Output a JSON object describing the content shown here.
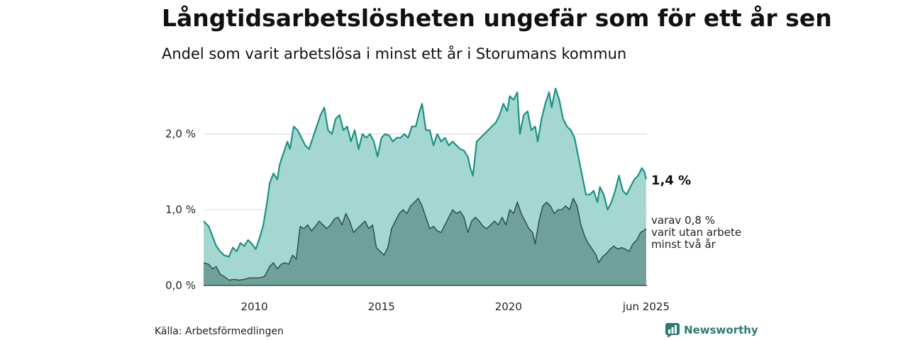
{
  "header": {
    "title": "Långtidsarbetslösheten ungefär som för ett år sen",
    "subtitle": "Andel som varit arbetslösa i minst ett år i Storumans kommun"
  },
  "footer": {
    "source": "Källa: Arbetsförmedlingen",
    "brand": "Newsworthy"
  },
  "colors": {
    "main_line": "#1a9384",
    "main_fill": "#a5d7d1",
    "sub_line": "#2a4a44",
    "sub_fill": "#6fa19a",
    "grid": "#dddddd"
  },
  "chart_data": {
    "type": "area",
    "x_unit": "year",
    "xlim": [
      2008.0,
      2025.45
    ],
    "ylim": [
      0,
      2.6
    ],
    "grid": true,
    "y_ticks": [
      {
        "value": 0.0,
        "label": "0,0 %"
      },
      {
        "value": 1.0,
        "label": "1,0 %"
      },
      {
        "value": 2.0,
        "label": "2,0 %"
      }
    ],
    "x_ticks": [
      {
        "value": 2010,
        "label": "2010"
      },
      {
        "value": 2015,
        "label": "2015"
      },
      {
        "value": 2020,
        "label": "2020"
      },
      {
        "value": 2025.42,
        "label": "jun 2025"
      }
    ],
    "series": [
      {
        "label_lines": [
          "1,4 %"
        ],
        "points": [
          [
            2008.0,
            0.85
          ],
          [
            2008.2,
            0.78
          ],
          [
            2008.35,
            0.65
          ],
          [
            2008.5,
            0.52
          ],
          [
            2008.65,
            0.45
          ],
          [
            2008.8,
            0.4
          ],
          [
            2009.0,
            0.38
          ],
          [
            2009.15,
            0.5
          ],
          [
            2009.3,
            0.45
          ],
          [
            2009.45,
            0.56
          ],
          [
            2009.6,
            0.52
          ],
          [
            2009.75,
            0.6
          ],
          [
            2009.9,
            0.55
          ],
          [
            2010.05,
            0.48
          ],
          [
            2010.2,
            0.62
          ],
          [
            2010.35,
            0.8
          ],
          [
            2010.5,
            1.1
          ],
          [
            2010.6,
            1.35
          ],
          [
            2010.75,
            1.48
          ],
          [
            2010.9,
            1.4
          ],
          [
            2011.0,
            1.6
          ],
          [
            2011.15,
            1.75
          ],
          [
            2011.3,
            1.9
          ],
          [
            2011.4,
            1.8
          ],
          [
            2011.55,
            2.1
          ],
          [
            2011.7,
            2.05
          ],
          [
            2011.85,
            1.95
          ],
          [
            2012.0,
            1.85
          ],
          [
            2012.15,
            1.8
          ],
          [
            2012.3,
            1.95
          ],
          [
            2012.45,
            2.1
          ],
          [
            2012.6,
            2.25
          ],
          [
            2012.75,
            2.35
          ],
          [
            2012.9,
            2.05
          ],
          [
            2013.05,
            2.0
          ],
          [
            2013.2,
            2.2
          ],
          [
            2013.35,
            2.25
          ],
          [
            2013.5,
            2.05
          ],
          [
            2013.65,
            2.1
          ],
          [
            2013.8,
            1.9
          ],
          [
            2013.95,
            2.05
          ],
          [
            2014.1,
            1.8
          ],
          [
            2014.25,
            2.0
          ],
          [
            2014.4,
            1.95
          ],
          [
            2014.55,
            2.0
          ],
          [
            2014.7,
            1.9
          ],
          [
            2014.85,
            1.7
          ],
          [
            2015.0,
            1.95
          ],
          [
            2015.15,
            2.0
          ],
          [
            2015.3,
            1.98
          ],
          [
            2015.45,
            1.9
          ],
          [
            2015.6,
            1.95
          ],
          [
            2015.75,
            1.95
          ],
          [
            2015.9,
            2.0
          ],
          [
            2016.05,
            1.95
          ],
          [
            2016.2,
            2.1
          ],
          [
            2016.35,
            2.1
          ],
          [
            2016.5,
            2.3
          ],
          [
            2016.6,
            2.4
          ],
          [
            2016.75,
            2.05
          ],
          [
            2016.9,
            2.05
          ],
          [
            2017.05,
            1.85
          ],
          [
            2017.2,
            2.0
          ],
          [
            2017.35,
            1.9
          ],
          [
            2017.5,
            1.95
          ],
          [
            2017.65,
            1.85
          ],
          [
            2017.8,
            1.9
          ],
          [
            2017.95,
            1.85
          ],
          [
            2018.1,
            1.8
          ],
          [
            2018.25,
            1.78
          ],
          [
            2018.4,
            1.7
          ],
          [
            2018.5,
            1.55
          ],
          [
            2018.6,
            1.45
          ],
          [
            2018.75,
            1.9
          ],
          [
            2018.9,
            1.95
          ],
          [
            2019.05,
            2.0
          ],
          [
            2019.2,
            2.05
          ],
          [
            2019.35,
            2.1
          ],
          [
            2019.5,
            2.15
          ],
          [
            2019.65,
            2.25
          ],
          [
            2019.8,
            2.4
          ],
          [
            2019.95,
            2.3
          ],
          [
            2020.05,
            2.5
          ],
          [
            2020.2,
            2.45
          ],
          [
            2020.35,
            2.55
          ],
          [
            2020.45,
            2.0
          ],
          [
            2020.6,
            2.25
          ],
          [
            2020.75,
            2.3
          ],
          [
            2020.9,
            2.05
          ],
          [
            2021.05,
            2.1
          ],
          [
            2021.15,
            1.9
          ],
          [
            2021.3,
            2.2
          ],
          [
            2021.45,
            2.4
          ],
          [
            2021.6,
            2.55
          ],
          [
            2021.7,
            2.35
          ],
          [
            2021.85,
            2.6
          ],
          [
            2022.0,
            2.45
          ],
          [
            2022.15,
            2.2
          ],
          [
            2022.3,
            2.1
          ],
          [
            2022.45,
            2.05
          ],
          [
            2022.6,
            1.95
          ],
          [
            2022.75,
            1.7
          ],
          [
            2022.9,
            1.45
          ],
          [
            2023.05,
            1.2
          ],
          [
            2023.2,
            1.2
          ],
          [
            2023.35,
            1.25
          ],
          [
            2023.5,
            1.1
          ],
          [
            2023.6,
            1.3
          ],
          [
            2023.75,
            1.2
          ],
          [
            2023.9,
            1.0
          ],
          [
            2024.05,
            1.1
          ],
          [
            2024.2,
            1.25
          ],
          [
            2024.35,
            1.45
          ],
          [
            2024.5,
            1.25
          ],
          [
            2024.65,
            1.2
          ],
          [
            2024.8,
            1.3
          ],
          [
            2024.95,
            1.4
          ],
          [
            2025.1,
            1.45
          ],
          [
            2025.25,
            1.55
          ],
          [
            2025.35,
            1.5
          ],
          [
            2025.42,
            1.4
          ]
        ]
      },
      {
        "label_lines": [
          "varav 0,8 %",
          "varit utan arbete",
          "minst två år"
        ],
        "points": [
          [
            2008.0,
            0.3
          ],
          [
            2008.2,
            0.28
          ],
          [
            2008.35,
            0.22
          ],
          [
            2008.5,
            0.25
          ],
          [
            2008.65,
            0.15
          ],
          [
            2008.8,
            0.12
          ],
          [
            2009.0,
            0.07
          ],
          [
            2009.2,
            0.08
          ],
          [
            2009.4,
            0.07
          ],
          [
            2009.6,
            0.08
          ],
          [
            2009.8,
            0.1
          ],
          [
            2010.0,
            0.1
          ],
          [
            2010.2,
            0.1
          ],
          [
            2010.4,
            0.12
          ],
          [
            2010.6,
            0.25
          ],
          [
            2010.75,
            0.3
          ],
          [
            2010.9,
            0.22
          ],
          [
            2011.05,
            0.28
          ],
          [
            2011.2,
            0.3
          ],
          [
            2011.35,
            0.28
          ],
          [
            2011.5,
            0.4
          ],
          [
            2011.65,
            0.35
          ],
          [
            2011.8,
            0.78
          ],
          [
            2011.95,
            0.75
          ],
          [
            2012.1,
            0.8
          ],
          [
            2012.25,
            0.72
          ],
          [
            2012.4,
            0.78
          ],
          [
            2012.55,
            0.85
          ],
          [
            2012.7,
            0.8
          ],
          [
            2012.85,
            0.75
          ],
          [
            2013.0,
            0.8
          ],
          [
            2013.15,
            0.88
          ],
          [
            2013.3,
            0.9
          ],
          [
            2013.45,
            0.8
          ],
          [
            2013.6,
            0.95
          ],
          [
            2013.75,
            0.85
          ],
          [
            2013.9,
            0.7
          ],
          [
            2014.05,
            0.75
          ],
          [
            2014.2,
            0.8
          ],
          [
            2014.35,
            0.85
          ],
          [
            2014.5,
            0.75
          ],
          [
            2014.65,
            0.8
          ],
          [
            2014.8,
            0.5
          ],
          [
            2014.95,
            0.45
          ],
          [
            2015.1,
            0.4
          ],
          [
            2015.25,
            0.5
          ],
          [
            2015.4,
            0.75
          ],
          [
            2015.55,
            0.85
          ],
          [
            2015.7,
            0.95
          ],
          [
            2015.85,
            1.0
          ],
          [
            2016.0,
            0.95
          ],
          [
            2016.15,
            1.05
          ],
          [
            2016.3,
            1.1
          ],
          [
            2016.45,
            1.15
          ],
          [
            2016.6,
            1.05
          ],
          [
            2016.75,
            0.9
          ],
          [
            2016.9,
            0.75
          ],
          [
            2017.05,
            0.78
          ],
          [
            2017.2,
            0.72
          ],
          [
            2017.35,
            0.7
          ],
          [
            2017.5,
            0.8
          ],
          [
            2017.65,
            0.9
          ],
          [
            2017.8,
            1.0
          ],
          [
            2017.95,
            0.95
          ],
          [
            2018.1,
            0.98
          ],
          [
            2018.25,
            0.9
          ],
          [
            2018.4,
            0.7
          ],
          [
            2018.55,
            0.85
          ],
          [
            2018.7,
            0.9
          ],
          [
            2018.85,
            0.85
          ],
          [
            2019.0,
            0.78
          ],
          [
            2019.15,
            0.75
          ],
          [
            2019.3,
            0.8
          ],
          [
            2019.45,
            0.85
          ],
          [
            2019.6,
            0.8
          ],
          [
            2019.75,
            0.9
          ],
          [
            2019.9,
            0.8
          ],
          [
            2020.05,
            1.0
          ],
          [
            2020.2,
            0.95
          ],
          [
            2020.35,
            1.1
          ],
          [
            2020.5,
            0.95
          ],
          [
            2020.65,
            0.85
          ],
          [
            2020.8,
            0.75
          ],
          [
            2020.95,
            0.7
          ],
          [
            2021.05,
            0.55
          ],
          [
            2021.2,
            0.85
          ],
          [
            2021.35,
            1.05
          ],
          [
            2021.5,
            1.1
          ],
          [
            2021.65,
            1.05
          ],
          [
            2021.8,
            0.95
          ],
          [
            2021.95,
            1.0
          ],
          [
            2022.1,
            1.0
          ],
          [
            2022.25,
            1.05
          ],
          [
            2022.4,
            1.0
          ],
          [
            2022.55,
            1.15
          ],
          [
            2022.7,
            1.05
          ],
          [
            2022.85,
            0.8
          ],
          [
            2023.0,
            0.65
          ],
          [
            2023.15,
            0.55
          ],
          [
            2023.3,
            0.48
          ],
          [
            2023.45,
            0.4
          ],
          [
            2023.55,
            0.3
          ],
          [
            2023.7,
            0.38
          ],
          [
            2023.85,
            0.42
          ],
          [
            2024.0,
            0.48
          ],
          [
            2024.15,
            0.52
          ],
          [
            2024.3,
            0.48
          ],
          [
            2024.45,
            0.5
          ],
          [
            2024.6,
            0.48
          ],
          [
            2024.75,
            0.45
          ],
          [
            2024.9,
            0.55
          ],
          [
            2025.05,
            0.6
          ],
          [
            2025.2,
            0.7
          ],
          [
            2025.3,
            0.72
          ],
          [
            2025.42,
            0.75
          ]
        ]
      }
    ]
  }
}
